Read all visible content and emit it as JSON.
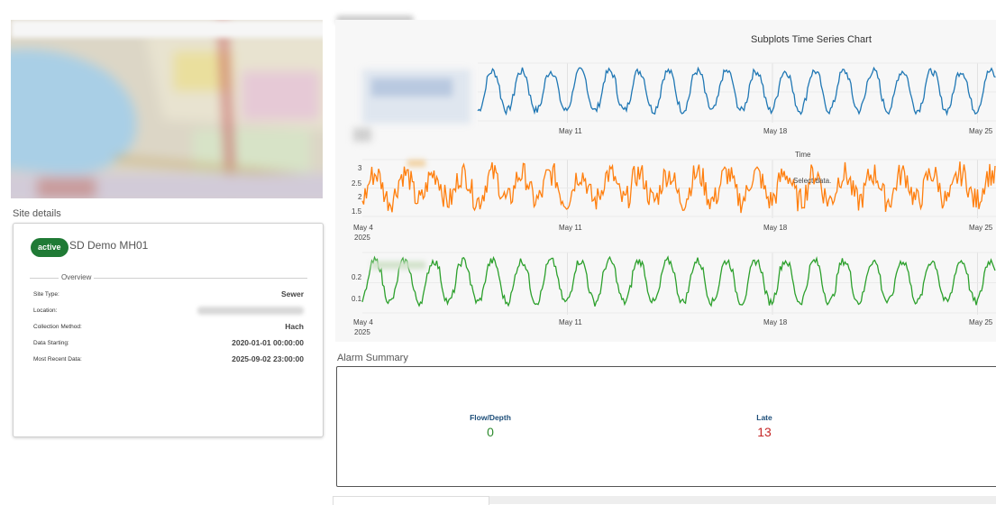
{
  "site_details": {
    "section_title": "Site details",
    "status_badge": "active",
    "site_name": "SD Demo MH01",
    "overview_label": "Overview",
    "rows": [
      {
        "label": "Site Type:",
        "value": "Sewer"
      },
      {
        "label": "Location:",
        "value": ""
      },
      {
        "label": "Collection Method:",
        "value": "Hach"
      },
      {
        "label": "Data Starting:",
        "value": "2020-01-01 00:00:00"
      },
      {
        "label": "Most Recent Data:",
        "value": "2025-09-02 23:00:00"
      }
    ]
  },
  "chart": {
    "title": "Subplots Time Series Chart",
    "overlay_time_label": "Time",
    "overlay_select_label": "Select data.",
    "colors": {
      "series1": "#1f77b4",
      "series2": "#ff7f0e",
      "series3": "#2ca02c"
    },
    "chart_data": {
      "type": "line",
      "title": "Subplots Time Series Chart",
      "x_ticks": [
        "May 4\n2025",
        "May 11",
        "May 18",
        "May 25"
      ],
      "subplots": [
        {
          "y_ticks": [],
          "x_ticks_shown": [
            "May 11",
            "May 18",
            "May 25"
          ]
        },
        {
          "y_ticks": [
            1.5,
            2,
            2.5,
            3
          ],
          "ylim": [
            1.4,
            3.1
          ],
          "x_ticks_shown": [
            "May 4\n2025",
            "May 11",
            "May 18",
            "May 25"
          ]
        },
        {
          "y_ticks": [
            0.1,
            0.2
          ],
          "ylim": [
            0.05,
            0.27
          ],
          "x_ticks_shown": [
            "May 4\n2025",
            "May 11",
            "May 18",
            "May 25"
          ]
        }
      ]
    }
  },
  "tick_labels": {
    "s1_x": [
      "May 11",
      "May 18",
      "May 25"
    ],
    "s2_x": [
      "May 4",
      "May 11",
      "May 18",
      "May 25"
    ],
    "s2_year": "2025",
    "s2_y": [
      "3",
      "2.5",
      "2",
      "1.5"
    ],
    "s3_x": [
      "May 4",
      "May 11",
      "May 18",
      "May 25"
    ],
    "s3_year": "2025",
    "s3_y": [
      "0.2",
      "0.1"
    ]
  },
  "alarm": {
    "title": "Alarm Summary",
    "items": [
      {
        "name": "Flow/Depth",
        "value": "0",
        "color": "#2e8b2e"
      },
      {
        "name": "Late",
        "value": "13",
        "color": "#c62828"
      }
    ]
  }
}
